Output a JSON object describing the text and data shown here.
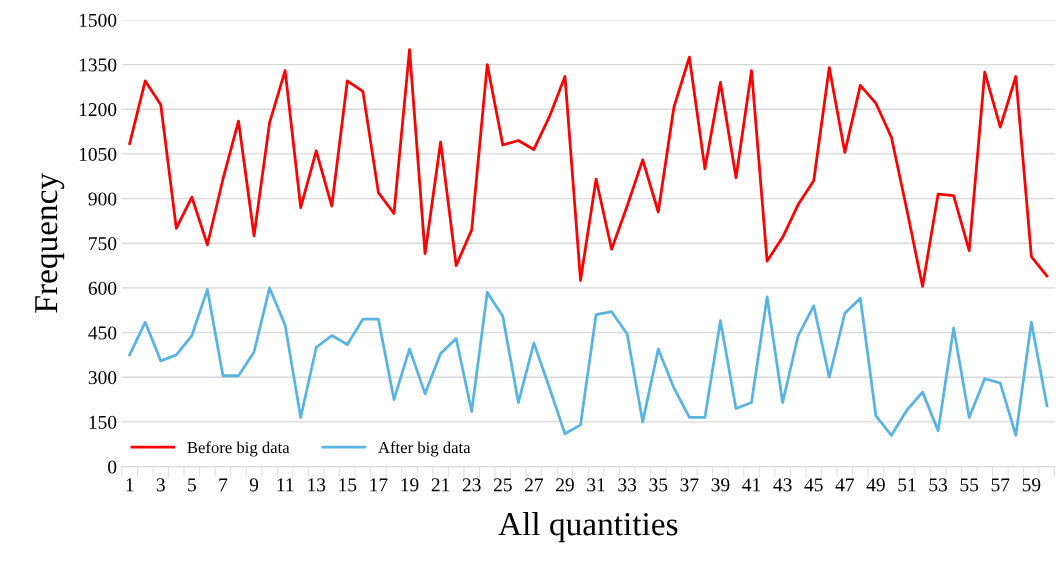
{
  "chart_data": {
    "type": "line",
    "xlabel": "All quantities",
    "ylabel": "Frequency",
    "categories": [
      "1",
      null,
      "3",
      null,
      "5",
      null,
      "7",
      null,
      "9",
      null,
      "11",
      null,
      "13",
      null,
      "15",
      null,
      "17",
      null,
      "19",
      null,
      "21",
      null,
      "23",
      null,
      "25",
      null,
      "27",
      null,
      "29",
      null,
      "31",
      null,
      "33",
      null,
      "35",
      null,
      "37",
      null,
      "39",
      null,
      "41",
      null,
      "43",
      null,
      "45",
      null,
      "47",
      null,
      "49",
      null,
      "51",
      null,
      "53",
      null,
      "55",
      null,
      "57",
      null,
      "59",
      null
    ],
    "series": [
      {
        "name": "Before big data",
        "color": "#ff0000",
        "values": [
          1085,
          1295,
          1215,
          800,
          905,
          745,
          965,
          1160,
          775,
          1155,
          1330,
          870,
          1060,
          875,
          1295,
          1260,
          920,
          850,
          1400,
          715,
          1090,
          675,
          795,
          1350,
          1080,
          1095,
          1065,
          1175,
          1310,
          625,
          965,
          730,
          875,
          1030,
          855,
          1205,
          1375,
          1000,
          1290,
          970,
          1330,
          690,
          770,
          880,
          960,
          1340,
          1055,
          1280,
          1220,
          1105,
          860,
          605,
          915,
          910,
          725,
          1325,
          1140,
          1310,
          705,
          640
        ]
      },
      {
        "name": "After big data",
        "color": "#5ab4e1",
        "values": [
          375,
          485,
          355,
          375,
          440,
          595,
          305,
          305,
          385,
          600,
          475,
          165,
          400,
          440,
          410,
          495,
          495,
          225,
          395,
          245,
          380,
          430,
          185,
          585,
          505,
          215,
          415,
          265,
          110,
          140,
          510,
          520,
          445,
          150,
          395,
          265,
          165,
          165,
          490,
          195,
          215,
          570,
          215,
          440,
          540,
          300,
          515,
          565,
          170,
          105,
          190,
          250,
          120,
          465,
          165,
          295,
          280,
          105,
          485,
          205
        ]
      }
    ],
    "ylim": [
      0,
      1500
    ],
    "yticks": [
      0,
      150,
      300,
      450,
      600,
      750,
      900,
      1050,
      1200,
      1350,
      1500
    ],
    "grid": "y",
    "legend": "bottom left",
    "marker": "none",
    "line_style": "solid"
  }
}
